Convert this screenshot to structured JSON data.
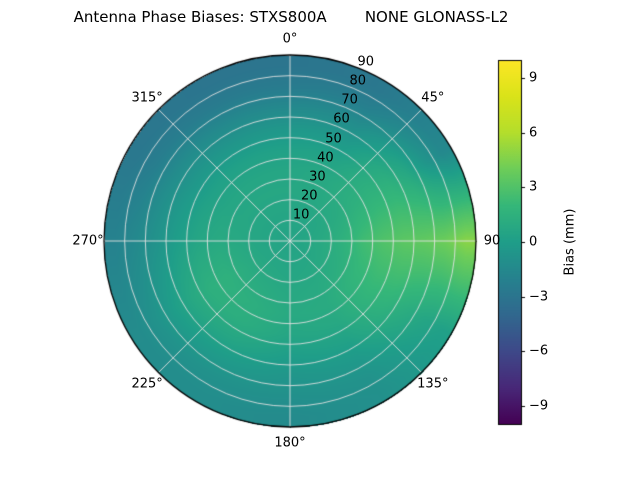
{
  "chart_data": {
    "type": "heatmap",
    "projection": "polar",
    "title": "Antenna Phase Biases: STXS800A        NONE GLONASS-L2",
    "theta_ticks_deg": [
      0,
      45,
      90,
      135,
      180,
      225,
      270,
      315
    ],
    "theta_tick_labels": [
      "0°",
      "45°",
      "90",
      "135°",
      "180°",
      "225°",
      "270°",
      "315°"
    ],
    "r_ticks": [
      10,
      20,
      30,
      40,
      50,
      60,
      70,
      80,
      90
    ],
    "r_tick_labels": [
      "10",
      "20",
      "30",
      "40",
      "50",
      "60",
      "70",
      "80",
      "90"
    ],
    "r_max": 90,
    "r_label_angle_deg": 23,
    "grid_on": true,
    "colorbar": {
      "label": "Bias (mm)",
      "ticks": [
        9,
        6,
        3,
        0,
        -3,
        -6,
        -9
      ],
      "tick_labels": [
        "9",
        "6",
        "3",
        "0",
        "−3",
        "−6",
        "−9"
      ],
      "vmin": -10,
      "vmax": 10,
      "colormap": "viridis",
      "stops": [
        "#440154",
        "#482878",
        "#3e4989",
        "#31688e",
        "#26828e",
        "#1f9e89",
        "#35b779",
        "#6dcd59",
        "#b4de2c",
        "#dae319",
        "#fde725"
      ]
    },
    "grid": {
      "azimuth_deg": [
        0,
        30,
        60,
        90,
        120,
        150,
        180,
        210,
        240,
        270,
        300,
        330
      ],
      "r_bin_centers": [
        5,
        15,
        25,
        35,
        45,
        55,
        65,
        75,
        85
      ],
      "bias_mm": [
        [
          0.5,
          0.6,
          0.7,
          0.6,
          0.2,
          -0.5,
          -1.5,
          -2.5,
          -3.0
        ],
        [
          0.5,
          0.6,
          0.8,
          0.8,
          0.4,
          -0.3,
          -1.2,
          -2.2,
          -2.8
        ],
        [
          0.5,
          0.7,
          1.0,
          1.4,
          1.6,
          1.5,
          0.8,
          -0.5,
          -1.5
        ],
        [
          0.6,
          0.9,
          1.5,
          2.4,
          3.0,
          3.4,
          3.6,
          4.0,
          4.8
        ],
        [
          0.5,
          0.8,
          1.2,
          1.8,
          2.0,
          1.8,
          1.2,
          0.6,
          0.2
        ],
        [
          0.5,
          0.7,
          0.9,
          1.0,
          0.8,
          0.3,
          -0.3,
          -0.8,
          -1.0
        ],
        [
          0.5,
          0.6,
          0.8,
          0.9,
          0.6,
          0.0,
          -0.6,
          -1.0,
          -1.4
        ],
        [
          0.5,
          0.7,
          1.0,
          1.3,
          1.2,
          0.6,
          -0.2,
          -0.9,
          -1.2
        ],
        [
          0.5,
          0.7,
          1.1,
          1.5,
          1.4,
          0.8,
          0.0,
          -0.8,
          -1.3
        ],
        [
          0.5,
          0.6,
          0.8,
          0.9,
          0.6,
          0.0,
          -0.8,
          -1.5,
          -2.0
        ],
        [
          0.5,
          0.6,
          0.7,
          0.6,
          0.2,
          -0.5,
          -1.3,
          -2.3,
          -2.8
        ],
        [
          0.5,
          0.6,
          0.7,
          0.6,
          0.2,
          -0.6,
          -1.5,
          -2.5,
          -3.0
        ]
      ]
    }
  },
  "colors": {
    "background": "#ffffff",
    "grid_line": "#e2e2e2",
    "outline": "#000000",
    "text": "#000000"
  }
}
